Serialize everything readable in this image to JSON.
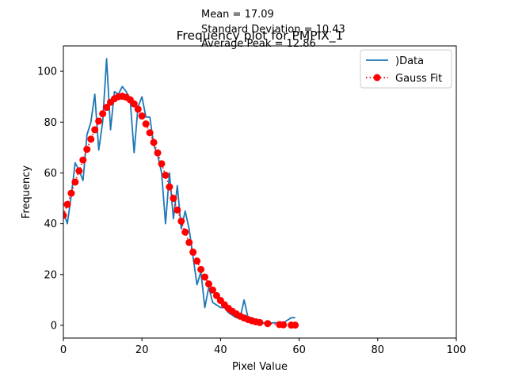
{
  "chart_data": {
    "type": "line",
    "title": "Frequency plot for PMPIX_1",
    "xlabel": "Pixel Value",
    "ylabel": "Frequency",
    "xlim": [
      0,
      100
    ],
    "ylim": [
      -5,
      110
    ],
    "xticks": [
      0,
      20,
      40,
      60,
      80,
      100
    ],
    "yticks": [
      0,
      20,
      40,
      60,
      80,
      100
    ],
    "grid": false,
    "legend_placement": "upper-right",
    "annotations": [
      "Mean = 17.09",
      "Standard Deviation = 10.43",
      "Average Peak = 12.86 "
    ],
    "series": [
      {
        "name": ")Data",
        "style": "line",
        "color": "#1f77b4",
        "x": [
          0,
          1,
          2,
          3,
          4,
          5,
          6,
          7,
          8,
          9,
          10,
          11,
          12,
          13,
          14,
          15,
          16,
          17,
          18,
          19,
          20,
          21,
          22,
          23,
          24,
          25,
          26,
          27,
          28,
          29,
          30,
          31,
          32,
          33,
          34,
          35,
          36,
          37,
          38,
          39,
          40,
          41,
          42,
          43,
          44,
          45,
          46,
          47,
          48,
          49,
          50,
          51,
          52,
          53,
          54,
          55,
          56,
          57,
          58,
          59
        ],
        "y": [
          45,
          40,
          51,
          64,
          61,
          57,
          75,
          80,
          91,
          69,
          80,
          105,
          77,
          92,
          91,
          94,
          92,
          89,
          68,
          86,
          90,
          82,
          82,
          71,
          67,
          60,
          40,
          60,
          42,
          55,
          38,
          45,
          38,
          27,
          16,
          21,
          7,
          15,
          9,
          8,
          7,
          7,
          5,
          4,
          3,
          3,
          10,
          3,
          3,
          1,
          0,
          1,
          0,
          1,
          1,
          1,
          1,
          2,
          3,
          3
        ]
      },
      {
        "name": "Gauss Fit",
        "style": "dotted-markers",
        "color": "#ff0000",
        "x": [
          0,
          1,
          2,
          3,
          4,
          5,
          6,
          7,
          8,
          9,
          10,
          11,
          12,
          13,
          14,
          15,
          16,
          17,
          18,
          19,
          20,
          21,
          22,
          23,
          24,
          25,
          26,
          27,
          28,
          29,
          30,
          31,
          32,
          33,
          34,
          35,
          36,
          37,
          38,
          39,
          40,
          41,
          42,
          43,
          44,
          45,
          46,
          47,
          48,
          49,
          50,
          52,
          55,
          56,
          58,
          59
        ],
        "y": [
          43.3,
          47.6,
          52.0,
          56.4,
          60.8,
          65.1,
          69.3,
          73.3,
          77.0,
          80.4,
          83.3,
          85.8,
          87.8,
          89.2,
          90.0,
          90.2,
          89.8,
          88.8,
          87.2,
          85.1,
          82.4,
          79.3,
          75.8,
          72.0,
          67.9,
          63.6,
          59.1,
          54.5,
          50.0,
          45.4,
          41.0,
          36.7,
          32.6,
          28.8,
          25.3,
          22.0,
          19.0,
          16.3,
          13.9,
          11.7,
          9.8,
          8.1,
          6.7,
          5.5,
          4.5,
          3.6,
          2.9,
          2.3,
          1.8,
          1.4,
          1.1,
          0.7,
          0.3,
          0.2,
          0.1,
          0.1
        ]
      }
    ]
  }
}
